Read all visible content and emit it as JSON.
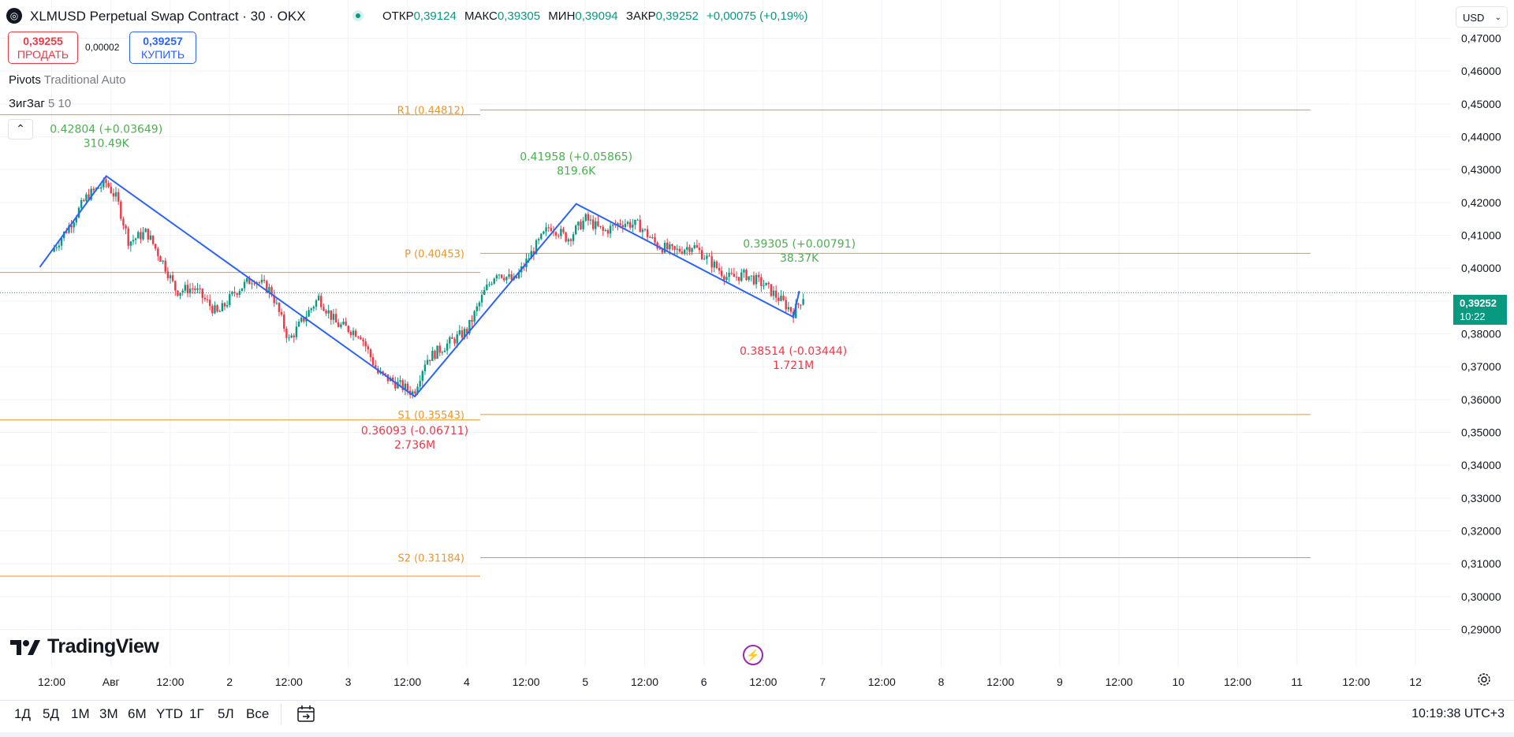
{
  "header": {
    "symbol_title": "XLMUSD Perpetual Swap Contract · 30 · OKX",
    "open_label": "ОТКР",
    "open": "0,39124",
    "high_label": "МАКС",
    "high": "0,39305",
    "low_label": "МИН",
    "low": "0,39094",
    "close_label": "ЗАКР",
    "close": "0,39252",
    "change": "+0,00075 (+0,19%)"
  },
  "trade": {
    "sell_price": "0,39255",
    "sell_label": "ПРОДАТЬ",
    "spread": "0,00002",
    "buy_price": "0,39257",
    "buy_label": "КУПИТЬ"
  },
  "indicators": {
    "pivots_name": "Pivots",
    "pivots_args": "Traditional Auto",
    "zigzag_name": "ЗигЗаг",
    "zigzag_args": "5 10"
  },
  "currency": "USD",
  "last_price_tag": {
    "price": "0,39252",
    "countdown": "10:22"
  },
  "time_ranges": [
    "1Д",
    "5Д",
    "1М",
    "3М",
    "6М",
    "YTD",
    "1Г",
    "5Л",
    "Все"
  ],
  "clock": "10:19:38 UTC+3",
  "logo_text": "TradingView",
  "colors": {
    "up": "#089981",
    "down": "#f23645",
    "zigzag": "#2962ff",
    "pivot": "#f7931a",
    "label_up": "#4caf50"
  },
  "chart_data": {
    "type": "candlestick",
    "instrument": "XLMUSD Perpetual Swap Contract",
    "interval": "30",
    "ylim": [
      0.285,
      0.475
    ],
    "y_ticks": [
      "0,47000",
      "0,46000",
      "0,45000",
      "0,44000",
      "0,43000",
      "0,42000",
      "0,41000",
      "0,40000",
      "0,39000",
      "0,38000",
      "0,37000",
      "0,36000",
      "0,35000",
      "0,34000",
      "0,33000",
      "0,32000",
      "0,31000",
      "0,30000",
      "0,29000"
    ],
    "x_ticks": [
      "12:00",
      "Авг",
      "12:00",
      "2",
      "12:00",
      "3",
      "12:00",
      "4",
      "12:00",
      "5",
      "12:00",
      "6",
      "12:00",
      "7",
      "12:00",
      "8",
      "12:00",
      "9",
      "12:00",
      "10",
      "12:00",
      "11",
      "12:00",
      "12"
    ],
    "last_price": 0.39252,
    "pivots": [
      {
        "label": "R1 (0.44812)",
        "value": 0.44812,
        "prev_value": 0.4467
      },
      {
        "label": "P (0.40453)",
        "value": 0.40453,
        "prev_value": 0.3987
      },
      {
        "label": "S1 (0.35543)",
        "value": 0.35543,
        "prev_value": 0.3538
      },
      {
        "label": "S2 (0.31184)",
        "value": 0.31184,
        "prev_value": 0.3062
      }
    ],
    "zigzag": [
      {
        "t": -0.1,
        "v": 0.4003
      },
      {
        "t": 0.46,
        "v": 0.42804
      },
      {
        "t": 3.06,
        "v": 0.36093
      },
      {
        "t": 4.42,
        "v": 0.41958
      },
      {
        "t": 6.25,
        "v": 0.38514
      },
      {
        "t": 6.3,
        "v": 0.39305
      }
    ],
    "zigzag_labels": [
      {
        "price": "0.42804 (+0.03649)",
        "volume": "310.49K",
        "kind": "high"
      },
      {
        "price": "0.41958 (+0.05865)",
        "volume": "819.6K",
        "kind": "high"
      },
      {
        "price": "0.39305 (+0.00791)",
        "volume": "38.37K",
        "kind": "high"
      },
      {
        "price": "0.36093 (-0.06711)",
        "volume": "2.736M",
        "kind": "low"
      },
      {
        "price": "0.38514 (-0.03444)",
        "volume": "1.721M",
        "kind": "low"
      }
    ],
    "price_path": [
      [
        0.0,
        0.405
      ],
      [
        0.15,
        0.413
      ],
      [
        0.3,
        0.422
      ],
      [
        0.46,
        0.426
      ],
      [
        0.55,
        0.421
      ],
      [
        0.65,
        0.408
      ],
      [
        0.8,
        0.411
      ],
      [
        0.95,
        0.401
      ],
      [
        1.05,
        0.393
      ],
      [
        1.2,
        0.394
      ],
      [
        1.4,
        0.386
      ],
      [
        1.55,
        0.393
      ],
      [
        1.7,
        0.397
      ],
      [
        1.85,
        0.393
      ],
      [
        2.0,
        0.378
      ],
      [
        2.15,
        0.386
      ],
      [
        2.25,
        0.391
      ],
      [
        2.4,
        0.383
      ],
      [
        2.6,
        0.38
      ],
      [
        2.75,
        0.368
      ],
      [
        2.9,
        0.365
      ],
      [
        3.05,
        0.362
      ],
      [
        3.15,
        0.372
      ],
      [
        3.3,
        0.376
      ],
      [
        3.5,
        0.381
      ],
      [
        3.65,
        0.393
      ],
      [
        3.75,
        0.399
      ],
      [
        3.9,
        0.396
      ],
      [
        4.05,
        0.405
      ],
      [
        4.2,
        0.413
      ],
      [
        4.35,
        0.409
      ],
      [
        4.5,
        0.415
      ],
      [
        4.65,
        0.411
      ],
      [
        4.8,
        0.414
      ],
      [
        4.95,
        0.413
      ],
      [
        5.1,
        0.407
      ],
      [
        5.25,
        0.405
      ],
      [
        5.4,
        0.407
      ],
      [
        5.55,
        0.402
      ],
      [
        5.7,
        0.397
      ],
      [
        5.85,
        0.398
      ],
      [
        6.0,
        0.395
      ],
      [
        6.15,
        0.39
      ],
      [
        6.25,
        0.3865
      ],
      [
        6.35,
        0.3925
      ]
    ]
  }
}
